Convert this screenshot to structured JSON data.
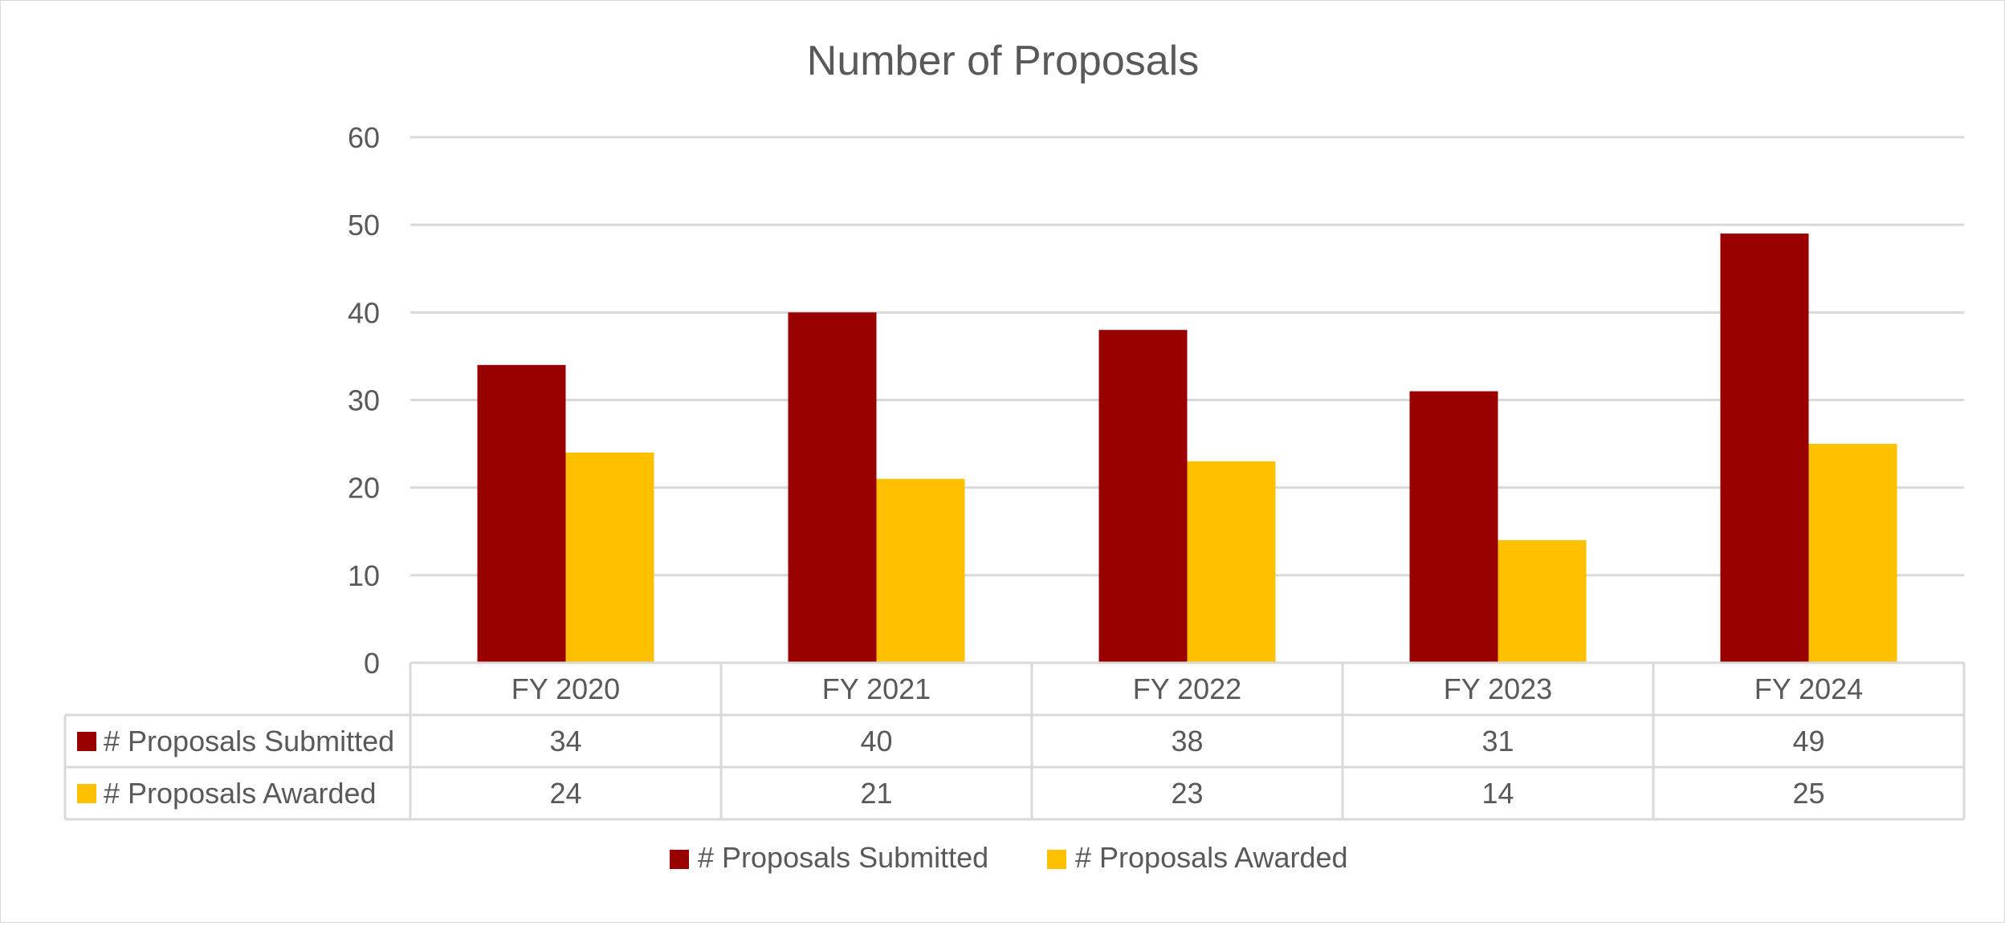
{
  "chart_data": {
    "type": "bar",
    "title": "Number of Proposals",
    "xlabel": "",
    "ylabel": "",
    "ylim": [
      0,
      60
    ],
    "yticks": [
      0,
      10,
      20,
      30,
      40,
      50,
      60
    ],
    "grid": true,
    "legend_position": "bottom",
    "categories": [
      "FY 2020",
      "FY 2021",
      "FY 2022",
      "FY 2023",
      "FY 2024"
    ],
    "series": [
      {
        "name": "# Proposals Submitted",
        "color": "#990000",
        "values": [
          34,
          40,
          38,
          31,
          49
        ]
      },
      {
        "name": "# Proposals Awarded",
        "color": "#FFC000",
        "values": [
          24,
          21,
          23,
          14,
          25
        ]
      }
    ],
    "data_table": true
  },
  "colors": {
    "axis_text": "#595959",
    "gridline": "#d9d9d9",
    "table_border": "#d9d9d9"
  }
}
